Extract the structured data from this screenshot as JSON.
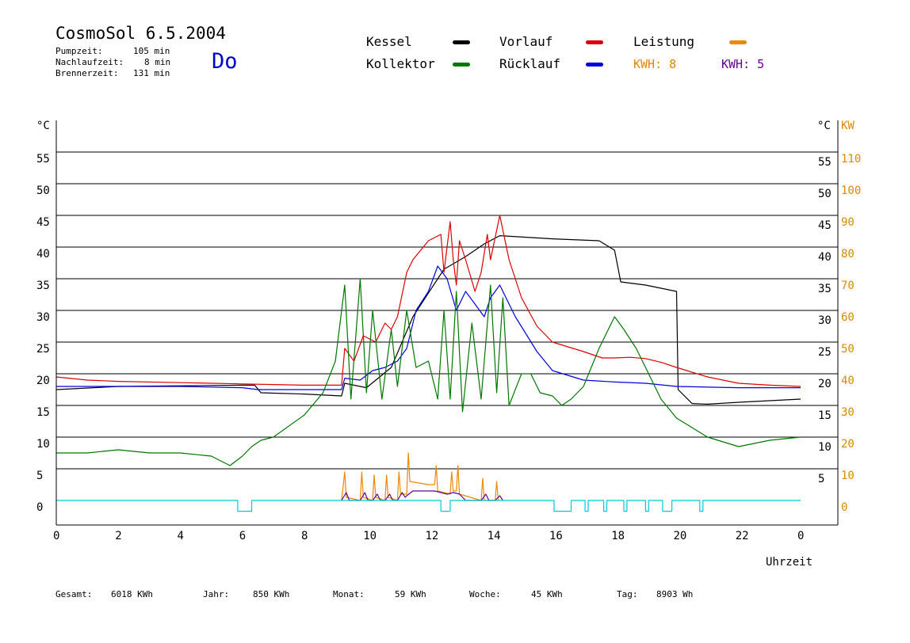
{
  "header": {
    "title": "CosmoSol 6.5.2004",
    "weekday": "Do",
    "stats": [
      {
        "label": "Pumpzeit:",
        "value": "105 min"
      },
      {
        "label": "Nachlaufzeit:",
        "value": "8 min"
      },
      {
        "label": "Brennerzeit:",
        "value": "131 min"
      }
    ]
  },
  "legend": {
    "items": [
      {
        "label": "Kessel",
        "color": "#000000"
      },
      {
        "label": "Vorlauf",
        "color": "#dd0000"
      },
      {
        "label": "Leistung",
        "color": "#ee8800"
      },
      {
        "label": "Kollektor",
        "color": "#007700"
      },
      {
        "label": "Rücklauf",
        "color": "#0000dd"
      }
    ],
    "kwh": [
      {
        "text": "KWH: 8",
        "color": "#dd8800"
      },
      {
        "text": "KWH: 5",
        "color": "#660099"
      }
    ]
  },
  "totals": [
    {
      "label": "Gesamt:",
      "value": "6018 KWh"
    },
    {
      "label": "Jahr:",
      "value": "850 KWh"
    },
    {
      "label": "Monat:",
      "value": "59 KWh"
    },
    {
      "label": "Woche:",
      "value": "45 KWh"
    },
    {
      "label": "Tag:",
      "value": "8903 Wh"
    }
  ],
  "chart_data": {
    "type": "line",
    "title": "CosmoSol 6.5.2004",
    "xlabel": "Uhrzeit",
    "ylabel_left": "°C",
    "ylabel_right_temp": "°C",
    "ylabel_right_power": "KW",
    "xlim": [
      0,
      24
    ],
    "ylim": [
      -3,
      60
    ],
    "x_tick_labels": [
      "0",
      "2",
      "4",
      "6",
      "8",
      "10",
      "12",
      "14",
      "16",
      "18",
      "20",
      "22",
      "0"
    ],
    "y_ticks": [
      0,
      5,
      10,
      15,
      20,
      25,
      30,
      35,
      40,
      45,
      50,
      55
    ],
    "y_ticks_right_temp": [
      5,
      10,
      15,
      20,
      25,
      30,
      35,
      40,
      45,
      50,
      55
    ],
    "y_ticks_right_power": [
      0,
      10,
      20,
      30,
      40,
      50,
      60,
      70,
      80,
      90,
      100,
      110
    ],
    "grid": true,
    "series": [
      {
        "name": "Kessel",
        "color": "#000000",
        "x": [
          0,
          2,
          4,
          6,
          6.4,
          6.6,
          8,
          9.2,
          9.3,
          10,
          10.8,
          11.5,
          12.5,
          13.2,
          13.8,
          14.3,
          16,
          17.5,
          18,
          18.2,
          19,
          20,
          20.05,
          20.5,
          21,
          22,
          24
        ],
        "y": [
          17.5,
          18,
          18.1,
          18.2,
          18.2,
          17,
          16.8,
          16.5,
          18.5,
          17.8,
          21,
          29,
          36.5,
          38.5,
          40.5,
          41.8,
          41.3,
          41,
          39.5,
          34.5,
          34,
          33,
          17.5,
          15.3,
          15.2,
          15.5,
          16
        ]
      },
      {
        "name": "Vorlauf",
        "color": "#dd0000",
        "x": [
          0,
          1,
          2,
          4,
          6,
          7,
          8,
          9.2,
          9.3,
          9.6,
          9.9,
          10.3,
          10.6,
          10.8,
          11,
          11.3,
          11.5,
          12,
          12.4,
          12.5,
          12.7,
          12.8,
          12.9,
          13,
          13.2,
          13.5,
          13.7,
          13.9,
          14,
          14.3,
          14.6,
          15,
          15.5,
          16,
          17,
          17.6,
          18,
          18.5,
          19,
          19.5,
          20,
          21,
          22,
          23,
          24
        ],
        "y": [
          19.5,
          19,
          18.8,
          18.6,
          18.4,
          18.3,
          18.2,
          18.2,
          24,
          22,
          26,
          25,
          28,
          27,
          29,
          36,
          38,
          41,
          42,
          36,
          44,
          38,
          34,
          41,
          38,
          33,
          36,
          42,
          38,
          45,
          38,
          32,
          27.5,
          25,
          23.5,
          22.5,
          22.5,
          22.6,
          22.4,
          21.8,
          21,
          19.5,
          18.5,
          18.2,
          18
        ]
      },
      {
        "name": "Rücklauf",
        "color": "#0000dd",
        "x": [
          0,
          2,
          4,
          6,
          6.5,
          8,
          9.2,
          9.3,
          9.8,
          10.2,
          10.6,
          11,
          11.3,
          11.6,
          12,
          12.3,
          12.6,
          12.9,
          13.2,
          13.5,
          13.8,
          14,
          14.3,
          14.8,
          15.5,
          16,
          17,
          18,
          19,
          20,
          22,
          24
        ],
        "y": [
          18,
          18,
          18,
          17.8,
          17.5,
          17.5,
          17.5,
          19.3,
          19,
          20.5,
          21,
          22,
          24,
          30,
          33,
          37,
          35,
          30,
          33,
          31,
          29,
          32,
          34,
          29,
          23.5,
          20.5,
          19,
          18.7,
          18.5,
          18,
          17.8,
          17.8
        ]
      },
      {
        "name": "Kollektor",
        "color": "#007700",
        "x": [
          0,
          1,
          2,
          3,
          4,
          5,
          5.6,
          6,
          6.3,
          6.6,
          7,
          8,
          8.6,
          9,
          9.3,
          9.5,
          9.8,
          10,
          10.2,
          10.5,
          10.8,
          11,
          11.3,
          11.6,
          12,
          12.3,
          12.5,
          12.7,
          12.9,
          13.1,
          13.4,
          13.7,
          14,
          14.2,
          14.4,
          14.6,
          15,
          15.3,
          15.6,
          16,
          16.3,
          16.6,
          17,
          17.5,
          17.8,
          18,
          18.3,
          18.7,
          19,
          19.5,
          20,
          20.5,
          21,
          22,
          23,
          24
        ],
        "y": [
          7.5,
          7.5,
          8,
          7.5,
          7.5,
          7,
          5.5,
          7,
          8.5,
          9.5,
          10,
          13.5,
          17,
          22,
          34,
          16,
          35,
          17,
          30,
          16,
          27,
          18,
          30,
          21,
          22,
          16,
          30,
          16,
          33,
          14,
          28,
          16,
          34,
          17,
          32,
          15,
          20,
          20,
          17,
          16.5,
          15,
          16,
          18,
          24,
          27,
          29,
          27,
          24,
          21,
          16,
          13,
          11.5,
          10,
          8.5,
          9.5,
          10
        ]
      },
      {
        "name": "Leistung",
        "color": "#ee8800",
        "axis": "power",
        "x": [
          9.2,
          9.3,
          9.35,
          9.8,
          9.85,
          9.9,
          10.2,
          10.25,
          10.3,
          10.6,
          10.65,
          10.7,
          11,
          11.05,
          11.1,
          11.3,
          11.35,
          11.4,
          12,
          12.2,
          12.25,
          12.3,
          12.7,
          12.75,
          12.8,
          12.9,
          12.95,
          13,
          13.7,
          13.75,
          13.8,
          14.15,
          14.2,
          14.25
        ],
        "y": [
          0,
          9,
          1,
          0,
          9,
          1,
          0,
          8,
          1,
          0,
          8,
          1,
          0,
          9,
          2,
          2,
          15,
          6,
          5,
          5,
          11,
          3,
          2,
          9,
          3,
          3,
          11,
          2,
          0,
          7,
          0,
          0,
          6,
          0
        ]
      },
      {
        "name": "KWH: 5",
        "color": "#660099",
        "axis": "power",
        "x": [
          9.2,
          9.35,
          9.45,
          9.8,
          9.95,
          10.05,
          10.2,
          10.35,
          10.45,
          10.6,
          10.75,
          10.85,
          11,
          11.15,
          11.25,
          11.3,
          11.5,
          12,
          12.2,
          12.4,
          12.6,
          12.8,
          13,
          13.2,
          13.7,
          13.85,
          13.95,
          14.15,
          14.3,
          14.4
        ],
        "y": [
          0,
          2.5,
          0,
          0,
          2.5,
          0,
          0,
          2,
          0,
          0,
          2,
          0,
          0,
          2.5,
          1,
          1.5,
          3,
          3,
          3,
          2.5,
          2,
          2.5,
          2,
          0,
          0,
          2,
          0,
          0,
          1.5,
          0
        ]
      },
      {
        "name": "Pumpe",
        "color": "#00c8d8",
        "type": "state",
        "x": [
          0,
          5.85,
          5.85,
          6.3,
          6.3,
          12.4,
          12.4,
          12.7,
          12.7,
          16.05,
          16.05,
          16.6,
          16.6,
          17.05,
          17.05,
          17.15,
          17.15,
          17.65,
          17.65,
          17.75,
          17.75,
          18.3,
          18.3,
          18.4,
          18.4,
          19.0,
          19.0,
          19.1,
          19.1,
          19.55,
          19.55,
          19.85,
          19.85,
          20.75,
          20.75,
          20.85,
          20.85,
          24
        ],
        "y": [
          0,
          0,
          -1.7,
          -1.7,
          0,
          0,
          -1.7,
          -1.7,
          0,
          0,
          -1.7,
          -1.7,
          0,
          0,
          -1.7,
          -1.7,
          0,
          0,
          -1.7,
          -1.7,
          0,
          0,
          -1.7,
          -1.7,
          0,
          0,
          -1.7,
          -1.7,
          0,
          0,
          -1.7,
          -1.7,
          0,
          0,
          -1.7,
          -1.7,
          0,
          0
        ]
      }
    ]
  }
}
